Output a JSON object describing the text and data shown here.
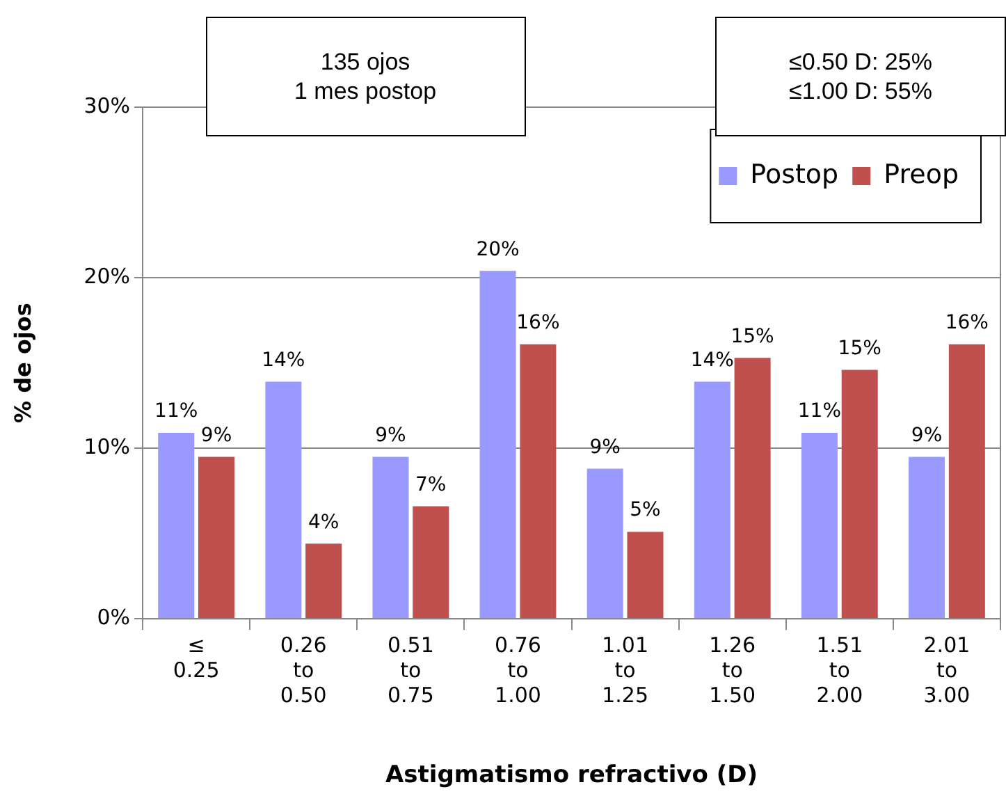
{
  "chart_data": {
    "type": "bar",
    "xlabel": "Astigmatismo refractivo (D)",
    "ylabel": "% de ojos",
    "categories": [
      "≤ 0.25",
      "0.26 to 0.50",
      "0.51 to 0.75",
      "0.76 to 1.00",
      "1.01 to 1.25",
      "1.26 to 1.50",
      "1.51 to 2.00",
      "2.01 to 3.00"
    ],
    "series": [
      {
        "name": "Postop",
        "color": "#9999ff",
        "values": [
          10.9,
          13.9,
          9.5,
          20.4,
          8.8,
          13.9,
          10.9,
          9.5
        ],
        "value_labels": [
          "11%",
          "14%",
          "9%",
          "20%",
          "9%",
          "14%",
          "11%",
          "9%"
        ]
      },
      {
        "name": "Preop",
        "color": "#c0504d",
        "values": [
          9.5,
          4.4,
          6.6,
          16.1,
          5.1,
          15.3,
          14.6,
          16.1
        ],
        "value_labels": [
          "9%",
          "4%",
          "7%",
          "16%",
          "5%",
          "15%",
          "15%",
          "16%"
        ]
      }
    ],
    "ylim": [
      0,
      30
    ],
    "yticks": [
      {
        "value": 0,
        "label": "0%"
      },
      {
        "value": 10,
        "label": "10%"
      },
      {
        "value": 20,
        "label": "20%"
      },
      {
        "value": 30,
        "label": "30%"
      }
    ],
    "grid": "y",
    "legend": "top right",
    "annotations": [
      "135 ojos\n1 mes postop",
      "≤0.50 D: 25%\n≤1.00 D: 55%"
    ]
  }
}
